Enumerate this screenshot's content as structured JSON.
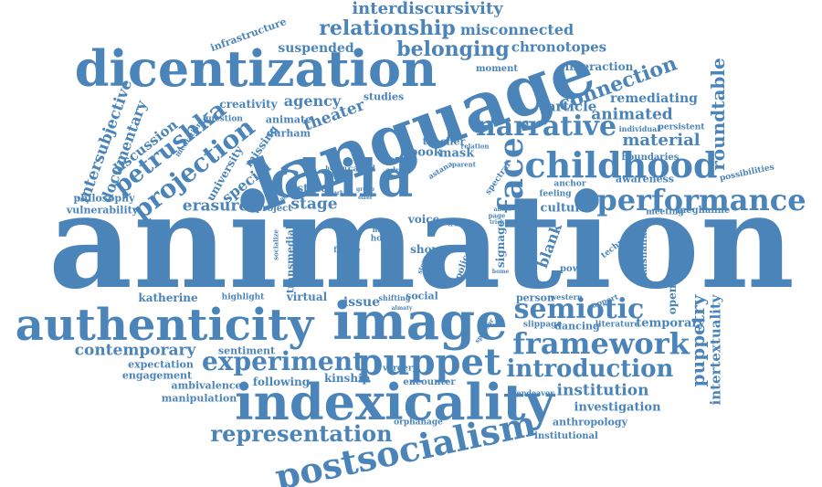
{
  "accent_color": "#4a84b9",
  "background_color": "#ffffff",
  "words": {
    "animation": "animation",
    "language": "language",
    "dicentization": "dicentization",
    "indexicality": "indexicality",
    "authenticity": "authenticity",
    "image": "image",
    "child": "child",
    "puppet": "puppet",
    "postsocialism": "postsocialism",
    "childhood": "childhood",
    "performance": "performance",
    "framework": "framework",
    "narrative": "narrative",
    "experiment": "experiment",
    "semiotic": "semiotic",
    "introduction": "introduction",
    "representation": "representation",
    "projection": "projection",
    "petrushka": "petrushka",
    "face": "face",
    "relationship": "relationship",
    "belonging": "belonging",
    "interdiscursivity": "interdiscursivity",
    "misconnected": "misconnected",
    "chronotopes": "chronotopes",
    "connection": "connection",
    "roundtable": "roundtable",
    "material": "material",
    "animated": "animated",
    "remediating": "remediating",
    "article": "article",
    "interaction": "interaction",
    "moment": "moment",
    "suspended": "suspended",
    "infrastructure": "infrastructure",
    "agency": "agency",
    "theater": "theater",
    "creativity": "creativity",
    "studies": "studies",
    "question": "question",
    "animate": "animate",
    "durham": "durham",
    "missing": "missing",
    "intersubjective": "intersubjective",
    "documentary": "documentary",
    "discussion": "discussion",
    "philosophy": "philosophy",
    "vulnerability": "vulnerability",
    "university": "university",
    "special": "special",
    "mediation": "mediation",
    "erasure": "erasure",
    "stage": "stage",
    "state": "state",
    "project": "project",
    "teacher": "teacher",
    "book": "book",
    "mask": "mask",
    "culture": "culture",
    "awareness": "awareness",
    "meeting": "meeting",
    "meghanne": "meghanne",
    "boundaries": "boundaries",
    "individual": "individual",
    "persistent": "persistent",
    "possibilities": "possibilities",
    "feeling": "feeling",
    "anchor": "anchor",
    "technique": "technique",
    "kashanka": "kashanka",
    "opening": "opening",
    "puppetry": "puppetry",
    "intertextuality": "intertextuality",
    "temporary": "temporary",
    "institution": "institution",
    "investigation": "investigation",
    "anthropology": "anthropology",
    "institutional": "institutional",
    "endeavor": "endeavor",
    "orphanage": "orphanage",
    "encounter": "encounter",
    "kinship": "kinship",
    "following": "following",
    "verdery": "verdery",
    "issue": "issue",
    "social": "social",
    "shifting": "shifting",
    "person": "person",
    "western": "western",
    "support": "support",
    "slippage": "slippage",
    "dancing": "dancing",
    "literature": "literature",
    "contemporary": "contemporary",
    "sentiment": "sentiment",
    "expectation": "expectation",
    "engagement": "engagement",
    "ambivalence": "ambivalence",
    "manipulation": "manipulation",
    "katherine": "katherine",
    "highlight": "highlight",
    "virtual": "virtual",
    "linguistic": "linguistic",
    "transmedial": "transmedial",
    "voice": "voice",
    "show": "show",
    "signage": "signage",
    "blank": "blank",
    "power": "power",
    "police": "police",
    "higher": "higher",
    "hope": "hope",
    "have": "have",
    "form": "form",
    "fragile": "fragile",
    "house": "house",
    "called": "called",
    "adult": "adult",
    "human": "human",
    "relation": "relation",
    "parent": "parent",
    "astana": "astana",
    "spectral": "spectral",
    "sign": "sign",
    "page": "page",
    "truth": "truth",
    "group": "group",
    "offer": "offer",
    "barker": "barker",
    "making": "making",
    "story": "story",
    "stories": "stories",
    "almaty": "almaty",
    "sponsor": "sponsor",
    "home": "home",
    "trick": "trick",
    "affect": "affect",
    "socialize": "socialize"
  }
}
